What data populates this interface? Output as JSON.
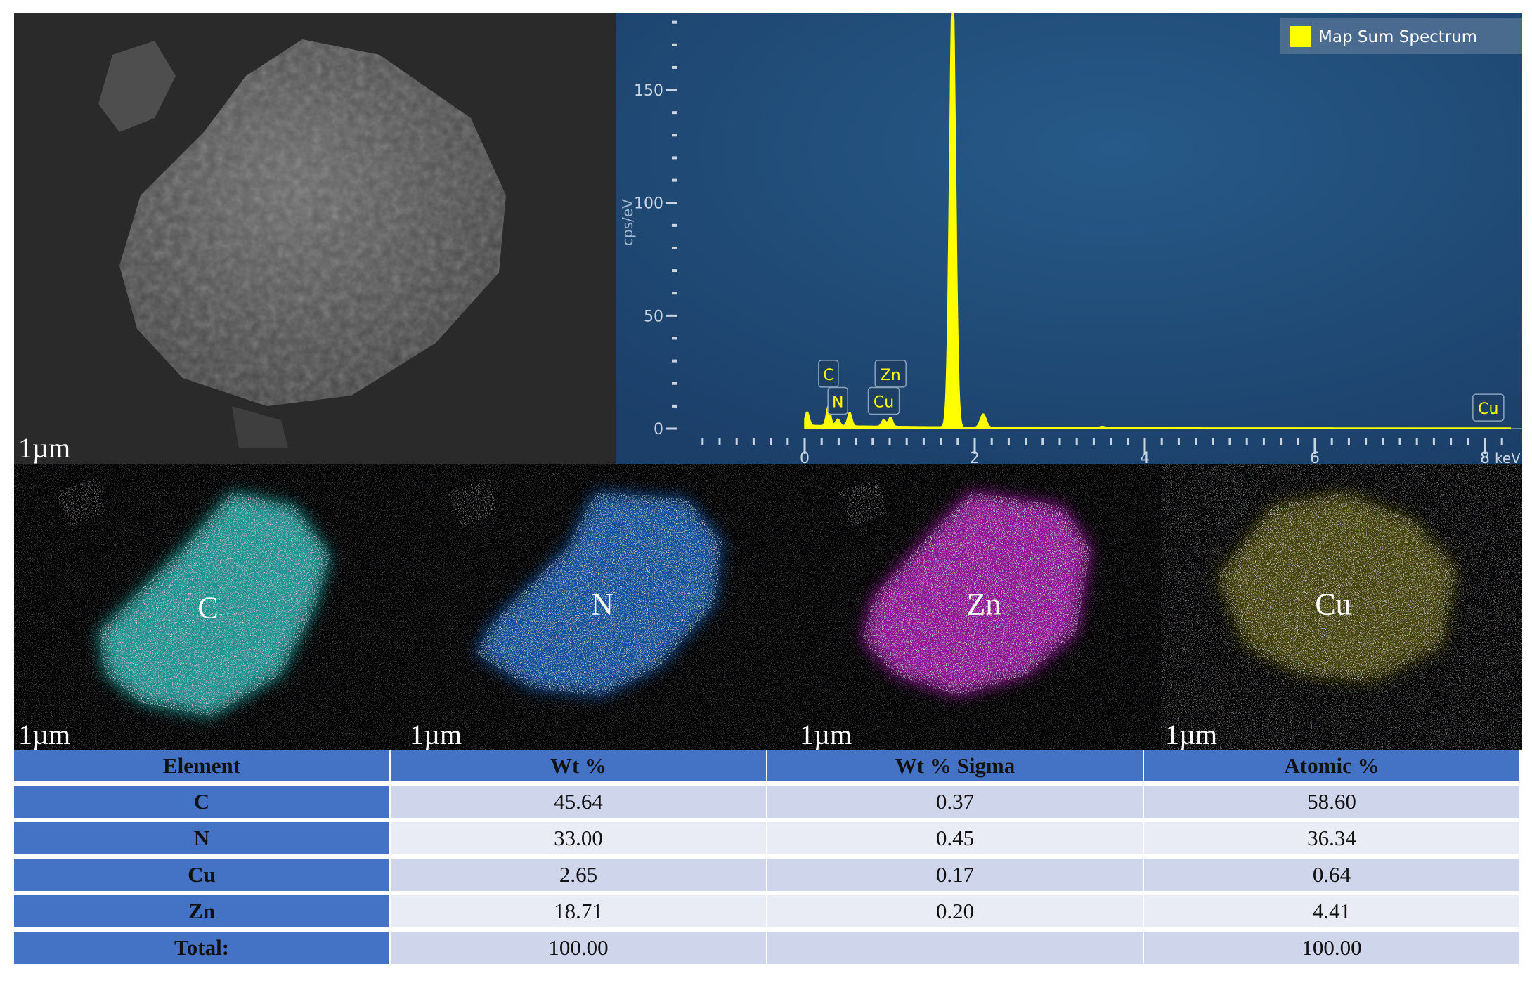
{
  "sem": {
    "scale_bar": "1µm"
  },
  "chart_data": {
    "type": "line",
    "title": "",
    "xlabel": "keV",
    "ylabel": "cps/eV",
    "xlim": [
      -1.3,
      8.3
    ],
    "ylim": [
      0,
      185
    ],
    "x_ticks": [
      0,
      2,
      4,
      6,
      8
    ],
    "y_ticks": [
      0,
      50,
      100,
      150
    ],
    "legend": {
      "position": "top-right",
      "entries": [
        "Map Sum Spectrum"
      ]
    },
    "series": [
      {
        "name": "Map Sum Spectrum",
        "color": "#ffff00",
        "peaks": [
          {
            "energy": 0.03,
            "cps": 6
          },
          {
            "energy": 0.28,
            "cps": 9
          },
          {
            "energy": 0.39,
            "cps": 3
          },
          {
            "energy": 0.53,
            "cps": 6
          },
          {
            "energy": 0.93,
            "cps": 3
          },
          {
            "energy": 1.01,
            "cps": 4
          },
          {
            "energy": 1.74,
            "cps": 200
          },
          {
            "energy": 2.1,
            "cps": 6
          },
          {
            "energy": 3.5,
            "cps": 0.6
          }
        ]
      }
    ],
    "markers": [
      {
        "label": "C",
        "energy": 0.28,
        "level": 24
      },
      {
        "label": "N",
        "energy": 0.39,
        "level": 12
      },
      {
        "label": "Zn",
        "energy": 1.01,
        "level": 24
      },
      {
        "label": "Cu",
        "energy": 0.93,
        "level": 12
      },
      {
        "label": "Cu",
        "energy": 8.04,
        "level": 9
      }
    ],
    "background_color": "#1f4a78"
  },
  "maps": [
    {
      "element": "C",
      "color": "#2ec6c6",
      "scale_bar": "1µm"
    },
    {
      "element": "N",
      "color": "#1e6fd0",
      "scale_bar": "1µm"
    },
    {
      "element": "Zn",
      "color": "#c21fc9",
      "scale_bar": "1µm"
    },
    {
      "element": "Cu",
      "color": "#c9c21a",
      "scale_bar": "1µm"
    }
  ],
  "table": {
    "headers": [
      "Element",
      "Wt %",
      "Wt % Sigma",
      "Atomic %"
    ],
    "rows": [
      [
        "C",
        "45.64",
        "0.37",
        "58.60"
      ],
      [
        "N",
        "33.00",
        "0.45",
        "36.34"
      ],
      [
        "Cu",
        "2.65",
        "0.17",
        "0.64"
      ],
      [
        "Zn",
        "18.71",
        "0.20",
        "4.41"
      ],
      [
        "Total:",
        "100.00",
        "",
        "100.00"
      ]
    ]
  }
}
